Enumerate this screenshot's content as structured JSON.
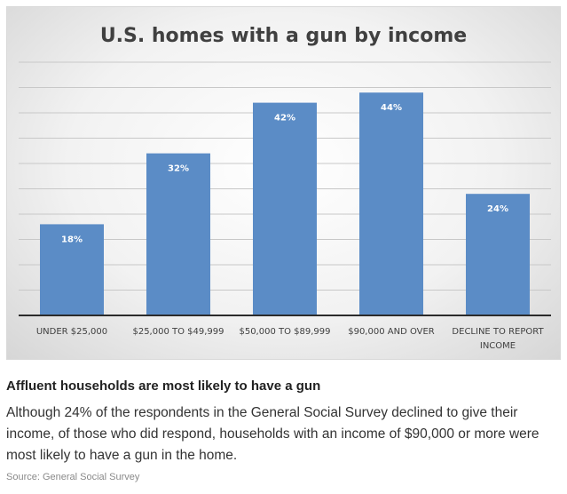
{
  "chart_data": {
    "type": "bar",
    "title": "U.S. homes with a gun by income",
    "categories": [
      "UNDER $25,000",
      "$25,000 TO $49,999",
      "$50,000 TO $89,999",
      "$90,000 AND OVER",
      "DECLINE TO REPORT INCOME"
    ],
    "category_lines": [
      [
        "UNDER $25,000"
      ],
      [
        "$25,000 TO $49,999"
      ],
      [
        "$50,000 TO $89,999"
      ],
      [
        "$90,000 AND OVER"
      ],
      [
        "DECLINE TO REPORT",
        "INCOME"
      ]
    ],
    "values": [
      18,
      32,
      42,
      44,
      24
    ],
    "data_labels": [
      "18%",
      "32%",
      "42%",
      "44%",
      "24%"
    ],
    "ylim": [
      0,
      50
    ],
    "grid": true,
    "bar_color": "#5b8cc6"
  },
  "caption": {
    "heading": "Affluent households are most likely to have a gun",
    "body": "Although 24% of the respondents in the General Social Survey declined to give their income, of those who did respond, households with an income of $90,000 or more were most likely to have a gun in the home.",
    "source": "Source: General Social Survey"
  }
}
